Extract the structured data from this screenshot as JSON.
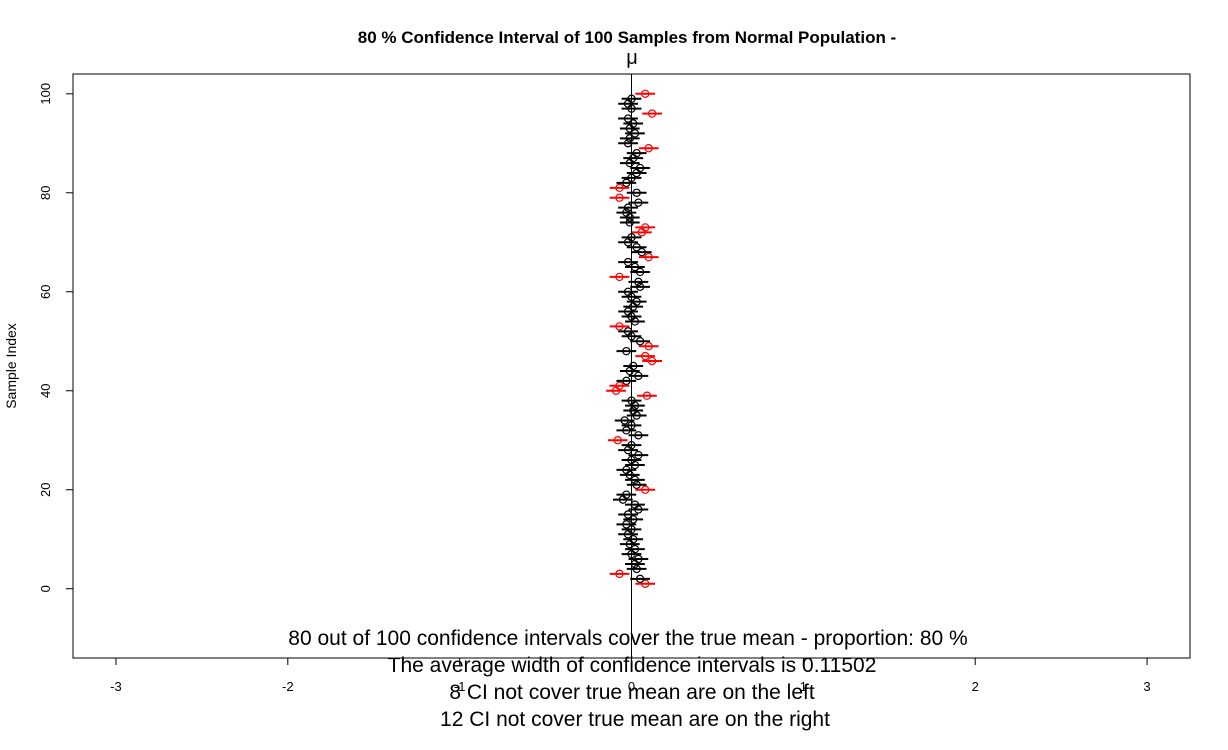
{
  "chart_data": {
    "type": "scatter",
    "title": "80 % Confidence Interval of 100  Samples from Normal Population -",
    "true_mean_label": "μ",
    "xlabel": "",
    "ylabel": "Sample Index",
    "xlim": [
      -3.25,
      3.25
    ],
    "ylim": [
      -14,
      104
    ],
    "x_ticks": [
      -3,
      -2,
      -1,
      0,
      1,
      2,
      3
    ],
    "y_ticks": [
      0,
      20,
      40,
      60,
      80,
      100
    ],
    "true_mean": 0,
    "interval_half_width": 0.0575,
    "colors": {
      "covers": "#000000",
      "misses": "#ff0000"
    },
    "samples": [
      {
        "index": 1,
        "mean": 0.08,
        "covers": false
      },
      {
        "index": 2,
        "mean": 0.05,
        "covers": true
      },
      {
        "index": 3,
        "mean": -0.07,
        "covers": false
      },
      {
        "index": 4,
        "mean": 0.03,
        "covers": true
      },
      {
        "index": 5,
        "mean": 0.02,
        "covers": true
      },
      {
        "index": 6,
        "mean": 0.04,
        "covers": true
      },
      {
        "index": 7,
        "mean": 0.0,
        "covers": true
      },
      {
        "index": 8,
        "mean": 0.02,
        "covers": true
      },
      {
        "index": 9,
        "mean": -0.01,
        "covers": true
      },
      {
        "index": 10,
        "mean": 0.01,
        "covers": true
      },
      {
        "index": 11,
        "mean": -0.02,
        "covers": true
      },
      {
        "index": 12,
        "mean": 0.0,
        "covers": true
      },
      {
        "index": 13,
        "mean": -0.03,
        "covers": true
      },
      {
        "index": 14,
        "mean": 0.01,
        "covers": true
      },
      {
        "index": 15,
        "mean": -0.02,
        "covers": true
      },
      {
        "index": 16,
        "mean": 0.04,
        "covers": true
      },
      {
        "index": 17,
        "mean": 0.02,
        "covers": true
      },
      {
        "index": 18,
        "mean": -0.05,
        "covers": true
      },
      {
        "index": 19,
        "mean": -0.03,
        "covers": true
      },
      {
        "index": 20,
        "mean": 0.08,
        "covers": false
      },
      {
        "index": 21,
        "mean": 0.03,
        "covers": true
      },
      {
        "index": 22,
        "mean": 0.02,
        "covers": true
      },
      {
        "index": 23,
        "mean": -0.01,
        "covers": true
      },
      {
        "index": 24,
        "mean": -0.03,
        "covers": true
      },
      {
        "index": 25,
        "mean": 0.02,
        "covers": true
      },
      {
        "index": 26,
        "mean": 0.0,
        "covers": true
      },
      {
        "index": 27,
        "mean": 0.04,
        "covers": true
      },
      {
        "index": 28,
        "mean": -0.02,
        "covers": true
      },
      {
        "index": 29,
        "mean": 0.0,
        "covers": true
      },
      {
        "index": 30,
        "mean": -0.08,
        "covers": false
      },
      {
        "index": 31,
        "mean": 0.04,
        "covers": true
      },
      {
        "index": 32,
        "mean": -0.03,
        "covers": true
      },
      {
        "index": 33,
        "mean": 0.0,
        "covers": true
      },
      {
        "index": 34,
        "mean": -0.04,
        "covers": true
      },
      {
        "index": 35,
        "mean": 0.03,
        "covers": true
      },
      {
        "index": 36,
        "mean": 0.01,
        "covers": true
      },
      {
        "index": 37,
        "mean": 0.02,
        "covers": true
      },
      {
        "index": 38,
        "mean": 0.0,
        "covers": true
      },
      {
        "index": 39,
        "mean": 0.09,
        "covers": false
      },
      {
        "index": 40,
        "mean": -0.09,
        "covers": false
      },
      {
        "index": 41,
        "mean": -0.07,
        "covers": false
      },
      {
        "index": 42,
        "mean": -0.03,
        "covers": true
      },
      {
        "index": 43,
        "mean": 0.04,
        "covers": true
      },
      {
        "index": 44,
        "mean": -0.01,
        "covers": true
      },
      {
        "index": 45,
        "mean": 0.01,
        "covers": true
      },
      {
        "index": 46,
        "mean": 0.12,
        "covers": false
      },
      {
        "index": 47,
        "mean": 0.08,
        "covers": false
      },
      {
        "index": 48,
        "mean": -0.03,
        "covers": true
      },
      {
        "index": 49,
        "mean": 0.1,
        "covers": false
      },
      {
        "index": 50,
        "mean": 0.05,
        "covers": true
      },
      {
        "index": 51,
        "mean": 0.0,
        "covers": true
      },
      {
        "index": 52,
        "mean": -0.02,
        "covers": true
      },
      {
        "index": 53,
        "mean": -0.07,
        "covers": false
      },
      {
        "index": 54,
        "mean": 0.02,
        "covers": true
      },
      {
        "index": 55,
        "mean": 0.0,
        "covers": true
      },
      {
        "index": 56,
        "mean": -0.02,
        "covers": true
      },
      {
        "index": 57,
        "mean": 0.01,
        "covers": true
      },
      {
        "index": 58,
        "mean": 0.03,
        "covers": true
      },
      {
        "index": 59,
        "mean": 0.0,
        "covers": true
      },
      {
        "index": 60,
        "mean": -0.02,
        "covers": true
      },
      {
        "index": 61,
        "mean": 0.05,
        "covers": true
      },
      {
        "index": 62,
        "mean": 0.04,
        "covers": true
      },
      {
        "index": 63,
        "mean": -0.07,
        "covers": false
      },
      {
        "index": 64,
        "mean": 0.05,
        "covers": true
      },
      {
        "index": 65,
        "mean": 0.02,
        "covers": true
      },
      {
        "index": 66,
        "mean": -0.02,
        "covers": true
      },
      {
        "index": 67,
        "mean": 0.1,
        "covers": false
      },
      {
        "index": 68,
        "mean": 0.06,
        "covers": true
      },
      {
        "index": 69,
        "mean": 0.03,
        "covers": true
      },
      {
        "index": 70,
        "mean": -0.02,
        "covers": true
      },
      {
        "index": 71,
        "mean": 0.0,
        "covers": true
      },
      {
        "index": 72,
        "mean": 0.06,
        "covers": false
      },
      {
        "index": 73,
        "mean": 0.08,
        "covers": false
      },
      {
        "index": 74,
        "mean": -0.01,
        "covers": true
      },
      {
        "index": 75,
        "mean": -0.01,
        "covers": true
      },
      {
        "index": 76,
        "mean": -0.03,
        "covers": true
      },
      {
        "index": 77,
        "mean": -0.02,
        "covers": true
      },
      {
        "index": 78,
        "mean": 0.04,
        "covers": true
      },
      {
        "index": 79,
        "mean": -0.07,
        "covers": false
      },
      {
        "index": 80,
        "mean": 0.03,
        "covers": true
      },
      {
        "index": 81,
        "mean": -0.07,
        "covers": false
      },
      {
        "index": 82,
        "mean": -0.03,
        "covers": true
      },
      {
        "index": 83,
        "mean": 0.0,
        "covers": true
      },
      {
        "index": 84,
        "mean": 0.03,
        "covers": true
      },
      {
        "index": 85,
        "mean": 0.05,
        "covers": true
      },
      {
        "index": 86,
        "mean": -0.01,
        "covers": true
      },
      {
        "index": 87,
        "mean": 0.01,
        "covers": true
      },
      {
        "index": 88,
        "mean": 0.03,
        "covers": true
      },
      {
        "index": 89,
        "mean": 0.1,
        "covers": false
      },
      {
        "index": 90,
        "mean": -0.02,
        "covers": true
      },
      {
        "index": 91,
        "mean": -0.01,
        "covers": true
      },
      {
        "index": 92,
        "mean": 0.02,
        "covers": true
      },
      {
        "index": 93,
        "mean": -0.01,
        "covers": true
      },
      {
        "index": 94,
        "mean": 0.01,
        "covers": true
      },
      {
        "index": 95,
        "mean": -0.02,
        "covers": true
      },
      {
        "index": 96,
        "mean": 0.12,
        "covers": false
      },
      {
        "index": 97,
        "mean": 0.0,
        "covers": true
      },
      {
        "index": 98,
        "mean": -0.02,
        "covers": true
      },
      {
        "index": 99,
        "mean": 0.0,
        "covers": true
      },
      {
        "index": 100,
        "mean": 0.08,
        "covers": false
      }
    ],
    "annotations": [
      "80 out of 100 confidence intervals cover the true mean - proportion: 80 %",
      "The average width of confidence intervals is 0.11502",
      "8 CI not cover true mean are on the left",
      "12 CI not cover true mean are on the right"
    ]
  }
}
